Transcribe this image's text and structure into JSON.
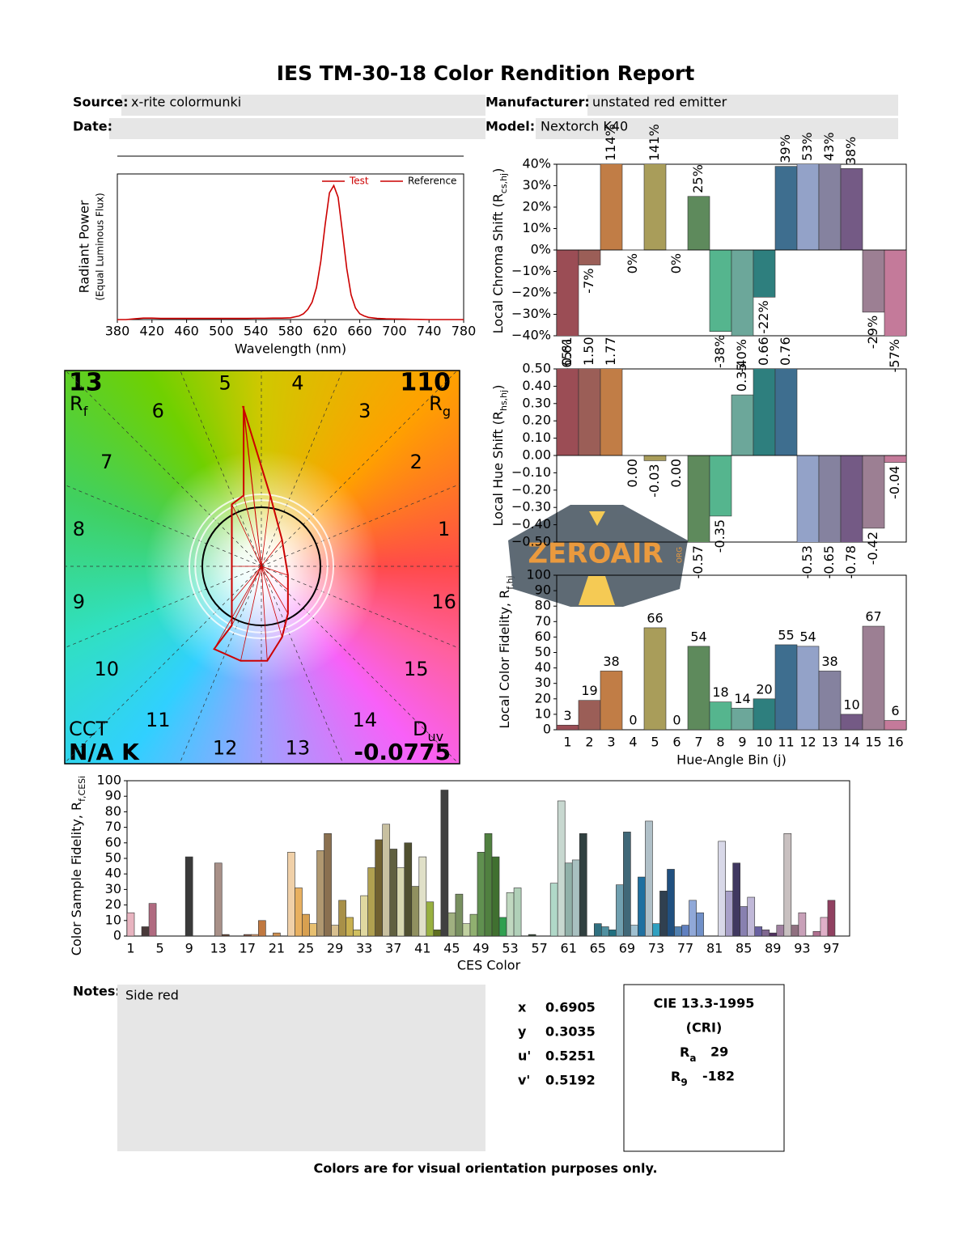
{
  "header": {
    "title": "IES TM-30-18 Color Rendition Report",
    "source_label": "Source:",
    "source": "x-rite colormunki",
    "manufacturer_label": "Manufacturer:",
    "manufacturer": "unstated red emitter",
    "date_label": "Date:",
    "model_label": "Model:",
    "model": "Nextorch K40"
  },
  "chart_data": [
    {
      "type": "line",
      "ylabel": "Radiant Power",
      "ylabel_sub": "(Equal Luminous Flux)",
      "xlabel": "Wavelength (nm)",
      "x": [
        380,
        390,
        400,
        410,
        420,
        430,
        440,
        450,
        460,
        470,
        480,
        490,
        500,
        510,
        520,
        530,
        540,
        550,
        560,
        570,
        580,
        590,
        595,
        600,
        605,
        610,
        615,
        620,
        625,
        630,
        635,
        640,
        645,
        650,
        655,
        660,
        665,
        670,
        680,
        690,
        700,
        710,
        720,
        730,
        740,
        750,
        760,
        770,
        780
      ],
      "series": [
        {
          "name": "Test",
          "color": "#cc0000",
          "values": [
            0,
            0,
            0.005,
            0.01,
            0.01,
            0.008,
            0.008,
            0.008,
            0.008,
            0.008,
            0.008,
            0.008,
            0.008,
            0.008,
            0.008,
            0.008,
            0.009,
            0.009,
            0.01,
            0.01,
            0.012,
            0.025,
            0.04,
            0.07,
            0.12,
            0.22,
            0.4,
            0.65,
            0.87,
            0.92,
            0.84,
            0.6,
            0.35,
            0.17,
            0.08,
            0.04,
            0.025,
            0.015,
            0.008,
            0.005,
            0.004,
            0.003,
            0.002,
            0.001,
            0,
            0,
            0,
            0,
            0
          ]
        },
        {
          "name": "Reference",
          "color": "#cc0000",
          "values": [
            null,
            null,
            null,
            null,
            null,
            null,
            null,
            null,
            null,
            null,
            null,
            null,
            null,
            null,
            null,
            null,
            null,
            null,
            null,
            null,
            null,
            null,
            null,
            null,
            null,
            null,
            null,
            null,
            null,
            null,
            null,
            null,
            null,
            null,
            null,
            null,
            null,
            null,
            null,
            null,
            null,
            null,
            null,
            null,
            null,
            null,
            null,
            null,
            null
          ]
        }
      ],
      "xlim": [
        380,
        780
      ],
      "xticks": [
        380,
        420,
        460,
        500,
        540,
        580,
        620,
        660,
        700,
        740,
        780
      ],
      "ylim": [
        0,
        1
      ],
      "legend": "upper right"
    },
    {
      "type": "vector",
      "bins": [
        1,
        2,
        3,
        4,
        5,
        6,
        7,
        8,
        9,
        10,
        11,
        12,
        13,
        14,
        15,
        16
      ],
      "test_x": [
        0.45,
        0.35,
        0.15,
        -0.31,
        -0.3,
        -0.3,
        -0.5,
        -0.5,
        -0.5,
        -0.5,
        -0.8,
        -0.35,
        0.1,
        0.35,
        0.45,
        0.45
      ],
      "test_y": [
        -0.15,
        0.45,
        1.2,
        2.7,
        2.7,
        1.2,
        1.05,
        0.0,
        -0.6,
        -1.0,
        -1.4,
        -1.6,
        -1.6,
        -1.2,
        -0.8,
        -0.4
      ],
      "rf": 13,
      "rf_label": "R",
      "rf_sub": "f",
      "rg": 110,
      "rg_label": "R",
      "rg_sub": "g",
      "cct_label": "CCT",
      "cct": "N/A K",
      "duv_label": "D",
      "duv_sub": "uv",
      "duv": -0.0775
    },
    {
      "type": "bar",
      "ylabel": "Local Chroma Shift (R",
      "ylabel_sub": "cs,hj",
      "ylabel_end": ")",
      "values": [
        -65,
        -7,
        114,
        0,
        141,
        0,
        25,
        -38,
        -40,
        -22,
        39,
        53,
        43,
        38,
        -29,
        -57
      ],
      "value_labels": [
        "-65%",
        "-7%",
        "114%",
        "0%",
        "141%",
        "0%",
        "25%",
        "-38%",
        "-40%",
        "-22%",
        "39%",
        "53%",
        "43%",
        "38%",
        "-29%",
        "-57%"
      ],
      "colors": [
        "#9b4d55",
        "#9b5e57",
        "#c17d46",
        "#c2a35a",
        "#a99d5a",
        "#8c9a55",
        "#5e8a5c",
        "#55b58e",
        "#6ca79a",
        "#2e7f7e",
        "#3e6e8f",
        "#93a2c8",
        "#85829f",
        "#745a85",
        "#9c7f93",
        "#c47a9a"
      ],
      "ylim": [
        -40,
        40
      ],
      "yticks": [
        {
          "value": 40,
          "label": "40%"
        },
        {
          "value": 30,
          "label": "30%"
        },
        {
          "value": 20,
          "label": "20%"
        },
        {
          "value": 10,
          "label": "10%"
        },
        {
          "value": 0,
          "label": "0%"
        },
        {
          "value": -10,
          "label": "−10%"
        },
        {
          "value": -20,
          "label": "−20%"
        },
        {
          "value": -30,
          "label": "−30%"
        },
        {
          "value": -40,
          "label": "−40%"
        }
      ]
    },
    {
      "type": "bar",
      "ylabel": "Local Hue Shift (R",
      "ylabel_sub": "hs,hj",
      "ylabel_end": ")",
      "values": [
        0.61,
        1.5,
        1.77,
        0,
        -0.03,
        0,
        -0.57,
        -0.35,
        0.35,
        0.66,
        0.76,
        -0.53,
        -0.65,
        -0.78,
        -0.42,
        -0.04
      ],
      "value_labels": [
        "0.61",
        "1.50",
        "1.77",
        "0.00",
        "-0.03",
        "0.00",
        "-0.57",
        "-0.35",
        "0.35",
        "0.66",
        "0.76",
        "-0.53",
        "-0.65",
        "-0.78",
        "-0.42",
        "-0.04"
      ],
      "colors": [
        "#9b4d55",
        "#9b5e57",
        "#c17d46",
        "#c2a35a",
        "#a99d5a",
        "#8c9a55",
        "#5e8a5c",
        "#55b58e",
        "#6ca79a",
        "#2e7f7e",
        "#3e6e8f",
        "#93a2c8",
        "#85829f",
        "#745a85",
        "#9c7f93",
        "#c47a9a"
      ],
      "ylim": [
        -0.5,
        0.5
      ],
      "yticks": [
        {
          "value": 0.5,
          "label": "0.50"
        },
        {
          "value": 0.4,
          "label": "0.40"
        },
        {
          "value": 0.3,
          "label": "0.30"
        },
        {
          "value": 0.2,
          "label": "0.20"
        },
        {
          "value": 0.1,
          "label": "0.10"
        },
        {
          "value": 0,
          "label": "0.00"
        },
        {
          "value": -0.1,
          "label": "−0.10"
        },
        {
          "value": -0.2,
          "label": "−0.20"
        },
        {
          "value": -0.3,
          "label": "−0.30"
        },
        {
          "value": -0.4,
          "label": "−0.40"
        },
        {
          "value": -0.5,
          "label": "−0.50"
        }
      ]
    },
    {
      "type": "bar",
      "ylabel": "Local Color Fidelity, R",
      "ylabel_sub": "f,hj",
      "xlabel": "Hue-Angle Bin (j)",
      "categories": [
        1,
        2,
        3,
        4,
        5,
        6,
        7,
        8,
        9,
        10,
        11,
        12,
        13,
        14,
        15,
        16
      ],
      "values": [
        3,
        19,
        38,
        0,
        66,
        0,
        54,
        18,
        14,
        20,
        55,
        54,
        38,
        10,
        67,
        6
      ],
      "colors": [
        "#9b4d55",
        "#9b5e57",
        "#c17d46",
        "#c2a35a",
        "#a99d5a",
        "#8c9a55",
        "#5e8a5c",
        "#55b58e",
        "#6ca79a",
        "#2e7f7e",
        "#3e6e8f",
        "#93a2c8",
        "#85829f",
        "#745a85",
        "#9c7f93",
        "#c47a9a"
      ],
      "ylim": [
        0,
        100
      ],
      "yticks": [
        0,
        10,
        20,
        30,
        40,
        50,
        60,
        70,
        80,
        90,
        100
      ]
    },
    {
      "type": "bar",
      "ylabel": "Color Sample Fidelity, R",
      "ylabel_sub": "f,CESi",
      "xlabel": "CES Color",
      "categories": [
        1,
        null,
        null,
        null,
        5,
        null,
        null,
        null,
        9,
        null,
        null,
        null,
        13,
        null,
        null,
        null,
        17,
        null,
        null,
        null,
        21,
        null,
        null,
        null,
        25,
        null,
        null,
        null,
        29,
        null,
        null,
        null,
        33,
        null,
        null,
        null,
        37,
        null,
        null,
        null,
        41,
        null,
        null,
        null,
        45,
        null,
        null,
        null,
        49,
        null,
        null,
        null,
        53,
        null,
        null,
        null,
        57,
        null,
        null,
        null,
        61,
        null,
        null,
        null,
        65,
        null,
        null,
        null,
        69,
        null,
        null,
        null,
        73,
        null,
        null,
        null,
        77,
        null,
        null,
        null,
        81,
        null,
        null,
        null,
        85,
        null,
        null,
        null,
        89,
        null,
        null,
        null,
        93,
        null,
        null,
        null,
        97,
        null,
        null
      ],
      "values": [
        15,
        0,
        6,
        21,
        0,
        0,
        0,
        0,
        51,
        0,
        0,
        0,
        47,
        1,
        0,
        0,
        1,
        1,
        10,
        0,
        2,
        0,
        54,
        31,
        14,
        8,
        55,
        66,
        7,
        23,
        12,
        4,
        26,
        44,
        62,
        72,
        56,
        44,
        60,
        32,
        51,
        22,
        4,
        94,
        15,
        27,
        8,
        14,
        54,
        66,
        51,
        12,
        28,
        31,
        0,
        1,
        0,
        0,
        34,
        87,
        47,
        49,
        66,
        0,
        8,
        6,
        4,
        33,
        67,
        7,
        38,
        74,
        8,
        29,
        43,
        6,
        7,
        23,
        15,
        0,
        0,
        61,
        29,
        47,
        19,
        25,
        6,
        4,
        2,
        7,
        66,
        7,
        15,
        0,
        3,
        12,
        23,
        0,
        0
      ],
      "colors": [
        "#e8b4c0",
        "#c9a0a8",
        "#4a3a3a",
        "#b06a80",
        "#c85060",
        "#8a3040",
        "#a04858",
        "#d07080",
        "#3a3a3a",
        "#804040",
        "#a86060",
        "#c07860",
        "#a89088",
        "#604030",
        "#d09070",
        "#b07050",
        "#805040",
        "#e0a070",
        "#c07840",
        "#905830",
        "#d09050",
        "#b08050",
        "#f0d0a8",
        "#e8b060",
        "#d8a050",
        "#e8c070",
        "#b09870",
        "#8a7050",
        "#d8c090",
        "#a89048",
        "#c8b050",
        "#d0c060",
        "#e0d8a0",
        "#b0a050",
        "#706030",
        "#c8c0a0",
        "#606040",
        "#d8d8b0",
        "#505030",
        "#909060",
        "#e0e0c8",
        "#98b040",
        "#607020",
        "#404040",
        "#a0b080",
        "#789060",
        "#c0d0a0",
        "#90b070",
        "#609050",
        "#508040",
        "#407030",
        "#30a050",
        "#c0d8c0",
        "#b0d0b8",
        "#80a090",
        "#304030",
        "#70a090",
        "#60a0a0",
        "#b0d8c8",
        "#c8d8d0",
        "#90b0a8",
        "#a8c0c0",
        "#304040",
        "#507070",
        "#307080",
        "#5090a0",
        "#207080",
        "#70a0b0",
        "#406878",
        "#a0c0d0",
        "#2070a0",
        "#b0c0c8",
        "#30a0c0",
        "#304050",
        "#205080",
        "#5080b0",
        "#6080c0",
        "#90a8d8",
        "#7090c8",
        "#a0a8d0",
        "#b0b0c8",
        "#d8d8e8",
        "#a8a0c8",
        "#403860",
        "#8880b0",
        "#c0b8d8",
        "#6860a0",
        "#806890",
        "#503060",
        "#a080a0",
        "#c8c0c0",
        "#907080",
        "#c8a0b8",
        "#e0c0d0",
        "#b07090",
        "#e0b0c8",
        "#904060",
        "#d090a0",
        "#c08090"
      ],
      "ylim": [
        0,
        100
      ],
      "yticks": [
        0,
        10,
        20,
        30,
        40,
        50,
        60,
        70,
        80,
        90,
        100
      ]
    }
  ],
  "notes": {
    "label": "Notes:",
    "text": "Side red"
  },
  "chromaticity": {
    "labels": [
      "x",
      "y",
      "u'",
      "v'"
    ],
    "values": [
      0.6905,
      0.3035,
      0.5251,
      0.5192
    ]
  },
  "cri": {
    "title": "CIE 13.3-1995",
    "subtitle": "(CRI)",
    "ra_label": "R",
    "ra_sub": "a",
    "ra": 29,
    "r9_label": "R",
    "r9_sub": "9",
    "r9": -182
  },
  "watermark": {
    "text": "ZEROAIR",
    "sub": "ORG"
  },
  "footer": "Colors are for visual orientation purposes only."
}
